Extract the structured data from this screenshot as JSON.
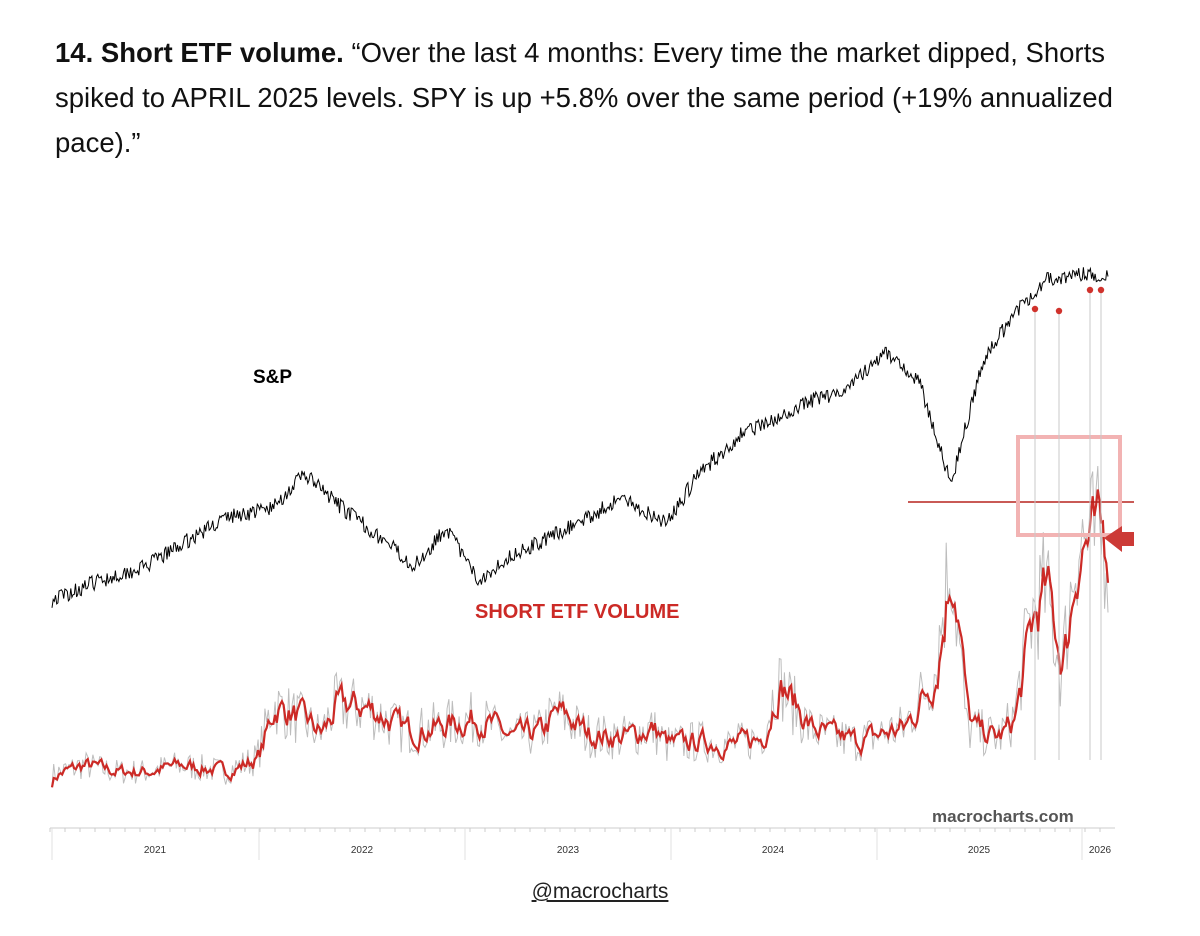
{
  "caption": {
    "number": "14.",
    "heading": "Short ETF volume.",
    "quote": "“Over the last 4 months: Every time the market dipped, Shorts spiked to APRIL 2025 levels. SPY is up +5.8% over the same period (+19% annualized pace).”"
  },
  "credit": "@macrocharts",
  "colors": {
    "sp_line": "#000000",
    "short_volume_raw": "#bdbdbd",
    "short_volume_smoothed": "#cc2a26",
    "april_2025_level_line": "#b7231f",
    "highlight_box": "#f2b3b3",
    "arrow": "#cc3a36",
    "dip_dots": "#d0322c"
  },
  "chart_data": {
    "type": "line",
    "title": "",
    "xlabel": "",
    "ylabel": "",
    "watermark": "macrocharts.com",
    "x_ticks": [
      "2021",
      "2022",
      "2023",
      "2024",
      "2025",
      "2026"
    ],
    "grid": false,
    "legend": "none",
    "series": [
      {
        "name": "S&P",
        "note": "relative level (index units not printed)",
        "x": [
          "2020-07",
          "2020-10",
          "2021-01",
          "2021-03",
          "2021-06",
          "2021-09",
          "2021-11",
          "2022-01",
          "2022-03",
          "2022-06",
          "2022-08",
          "2022-10",
          "2022-12",
          "2023-02",
          "2023-05",
          "2023-07",
          "2023-10",
          "2023-12",
          "2024-03",
          "2024-05",
          "2024-07",
          "2024-09",
          "2024-12",
          "2025-02",
          "2025-04",
          "2025-06",
          "2025-08",
          "2025-10",
          "2025-12"
        ],
        "values": [
          29,
          33,
          36,
          40,
          46,
          48,
          55,
          49,
          44,
          36,
          44,
          33,
          38,
          41,
          46,
          50,
          45,
          55,
          64,
          66,
          70,
          72,
          80,
          74,
          53,
          78,
          88,
          95,
          96
        ]
      },
      {
        "name": "SHORT ETF VOLUME",
        "note": "relative level (units not printed)",
        "x": [
          "2020-07",
          "2020-09",
          "2020-11",
          "2021-01",
          "2021-03",
          "2021-06",
          "2021-08",
          "2021-09",
          "2021-11",
          "2021-12",
          "2022-01",
          "2022-03",
          "2022-05",
          "2022-06",
          "2022-08",
          "2022-10",
          "2022-12",
          "2023-02",
          "2023-03",
          "2023-05",
          "2023-07",
          "2023-09",
          "2023-10",
          "2023-12",
          "2024-02",
          "2024-04",
          "2024-05",
          "2024-07",
          "2024-08",
          "2024-10",
          "2024-12",
          "2025-01",
          "2025-03",
          "2025-04",
          "2025-05",
          "2025-07",
          "2025-08",
          "2025-09",
          "2025-10",
          "2025-11",
          "2025-12"
        ],
        "values": [
          6,
          9,
          7,
          7,
          9,
          7,
          11,
          27,
          22,
          18,
          27,
          26,
          20,
          19,
          21,
          23,
          17,
          19,
          25,
          18,
          17,
          20,
          15,
          16,
          15,
          17,
          34,
          20,
          18,
          16,
          19,
          20,
          37,
          73,
          20,
          17,
          23,
          52,
          62,
          36,
          76
        ]
      }
    ],
    "annotations": [
      {
        "text": "S&P",
        "type": "series label"
      },
      {
        "text": "SHORT ETF VOLUME",
        "type": "series label"
      },
      {
        "type": "horizontal line",
        "meaning": "APRIL 2025 short-volume peak level"
      },
      {
        "type": "highlight box",
        "meaning": "recent short-volume spikes (last 4 months)"
      },
      {
        "type": "arrow",
        "meaning": "latest reading"
      },
      {
        "type": "dots",
        "meaning": "market dips in the last 4 months",
        "count": 4
      }
    ]
  }
}
